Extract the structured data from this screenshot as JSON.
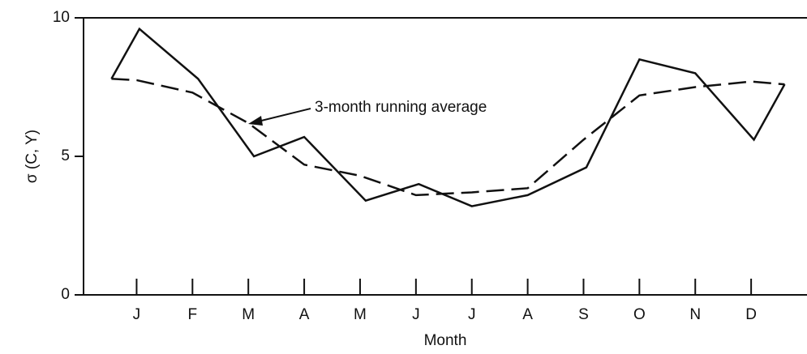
{
  "chart_data": {
    "type": "line",
    "y_label": "σ (C, Y)",
    "x_label": "Month",
    "annotation": "3-month running average",
    "xlim": [
      0.05,
      13.0
    ],
    "ylim": [
      0,
      10
    ],
    "yticks": [
      0,
      5,
      10
    ],
    "xticks": [
      {
        "value": 1,
        "label": "J"
      },
      {
        "value": 2,
        "label": "F"
      },
      {
        "value": 3,
        "label": "M"
      },
      {
        "value": 4,
        "label": "A"
      },
      {
        "value": 5,
        "label": "M"
      },
      {
        "value": 6,
        "label": "J"
      },
      {
        "value": 7,
        "label": "J"
      },
      {
        "value": 8,
        "label": "A"
      },
      {
        "value": 9,
        "label": "S"
      },
      {
        "value": 10,
        "label": "O"
      },
      {
        "value": 11,
        "label": "N"
      },
      {
        "value": 12,
        "label": "D"
      }
    ],
    "series": [
      {
        "color": "#111111",
        "dashed": false,
        "x": [
          0.55,
          1.05,
          2.1,
          3.1,
          4.0,
          5.1,
          6.05,
          7.0,
          8.0,
          9.05,
          10.0,
          11.0,
          12.05,
          12.6
        ],
        "values": [
          7.8,
          9.6,
          7.8,
          5.0,
          5.7,
          3.4,
          4.0,
          3.2,
          3.6,
          4.6,
          8.5,
          8.0,
          5.6,
          7.6
        ]
      },
      {
        "color": "#111111",
        "dashed": true,
        "x": [
          0.55,
          1.0,
          2.0,
          3.0,
          4.0,
          5.0,
          6.0,
          7.0,
          8.0,
          9.0,
          10.0,
          11.0,
          12.0,
          12.6
        ],
        "values": [
          7.8,
          7.75,
          7.3,
          6.2,
          4.7,
          4.3,
          3.6,
          3.7,
          3.85,
          5.6,
          7.2,
          7.5,
          7.7,
          7.6
        ]
      }
    ]
  }
}
